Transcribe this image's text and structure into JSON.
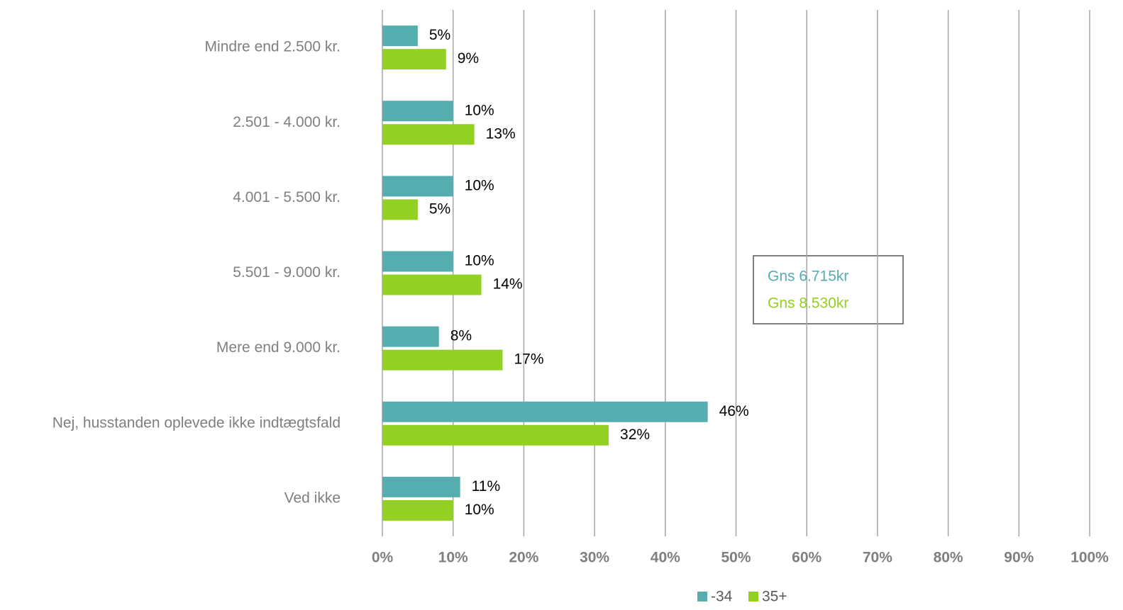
{
  "chart_data": {
    "type": "bar",
    "orientation": "horizontal",
    "categories": [
      "Mindre end 2.500 kr.",
      "2.501 - 4.000 kr.",
      "4.001 - 5.500 kr.",
      "5.501 - 9.000 kr.",
      "Mere end 9.000 kr.",
      "Nej, husstanden oplevede ikke indtægtsfald",
      "Ved ikke"
    ],
    "series": [
      {
        "name": "-34",
        "color": "#56adb0",
        "values": [
          5,
          10,
          10,
          10,
          8,
          46,
          11
        ],
        "value_labels": [
          "5%",
          "10%",
          "10%",
          "10%",
          "8%",
          "46%",
          "11%"
        ]
      },
      {
        "name": "35+",
        "color": "#92d022",
        "values": [
          9,
          13,
          5,
          14,
          17,
          32,
          10
        ],
        "value_labels": [
          "9%",
          "13%",
          "5%",
          "14%",
          "17%",
          "32%",
          "10%"
        ]
      }
    ],
    "xlim": [
      0,
      100
    ],
    "xticks": [
      {
        "value": 0,
        "label": "0%"
      },
      {
        "value": 10,
        "label": "10%"
      },
      {
        "value": 20,
        "label": "20%"
      },
      {
        "value": 30,
        "label": "30%"
      },
      {
        "value": 40,
        "label": "40%"
      },
      {
        "value": 50,
        "label": "50%"
      },
      {
        "value": 60,
        "label": "60%"
      },
      {
        "value": 70,
        "label": "70%"
      },
      {
        "value": 80,
        "label": "80%"
      },
      {
        "value": 90,
        "label": "90%"
      },
      {
        "value": 100,
        "label": "100%"
      }
    ],
    "grid": true,
    "legend": "bottom",
    "annotations": [
      {
        "text": "Gns 6.715kr",
        "color": "#56adb0"
      },
      {
        "text": "Gns 8.530kr",
        "color": "#92d022"
      }
    ]
  }
}
